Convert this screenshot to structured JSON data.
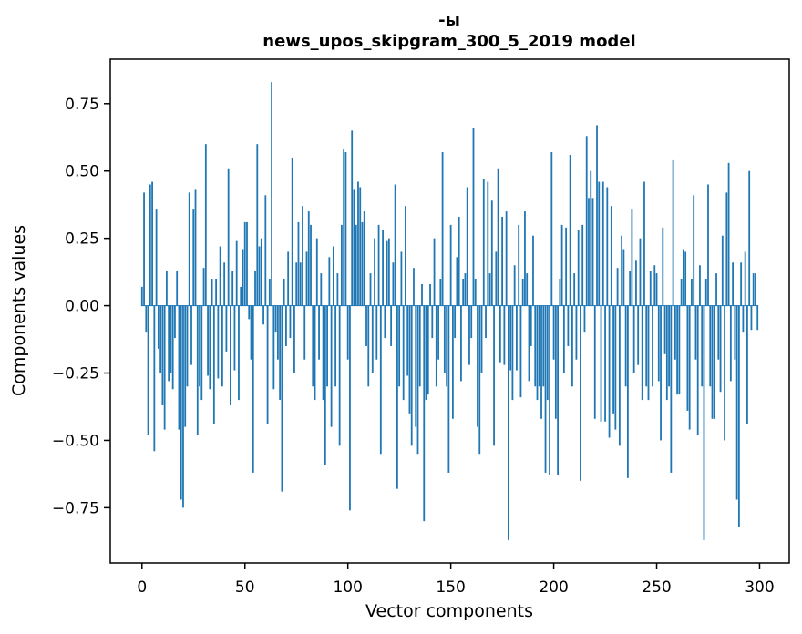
{
  "figure": {
    "title_line1": "-ы",
    "title_line2": "news_upos_skipgram_300_5_2019 model",
    "xlabel": "Vector components",
    "ylabel": "Components values"
  },
  "chart_data": {
    "type": "bar",
    "title": "-ы",
    "subtitle": "news_upos_skipgram_300_5_2019 model",
    "xlabel": "Vector components",
    "ylabel": "Components values",
    "bar_color": "#1f77b4",
    "axis_color": "#000000",
    "background_color": "#ffffff",
    "grid": false,
    "legend": null,
    "n_components": 300,
    "bar_width": 0.8,
    "xlim": [
      -15.4,
      314.4
    ],
    "ylim": [
      -0.955,
      0.915
    ],
    "xticks": [
      0,
      50,
      100,
      150,
      200,
      250,
      300
    ],
    "xtick_labels": [
      "0",
      "50",
      "100",
      "150",
      "200",
      "250",
      "300"
    ],
    "yticks": [
      0.75,
      0.5,
      0.25,
      0,
      -0.25,
      -0.5,
      -0.75
    ],
    "ytick_labels": [
      "0.75",
      "0.50",
      "0.25",
      "0.00",
      "−0.25",
      "−0.50",
      "−0.75"
    ],
    "values": [
      0.07,
      0.42,
      -0.1,
      -0.48,
      0.45,
      0.46,
      -0.54,
      0.36,
      -0.16,
      -0.25,
      -0.37,
      -0.46,
      0.13,
      -0.28,
      -0.25,
      -0.31,
      -0.12,
      0.13,
      -0.46,
      -0.72,
      -0.75,
      -0.45,
      -0.3,
      0.42,
      -0.22,
      0.36,
      0.43,
      -0.48,
      -0.3,
      -0.35,
      0.14,
      0.6,
      -0.26,
      -0.31,
      0.1,
      -0.44,
      0.1,
      -0.27,
      0.22,
      -0.3,
      0.16,
      -0.17,
      0.51,
      -0.37,
      0.13,
      -0.24,
      0.24,
      -0.35,
      0.07,
      0.21,
      0.31,
      0.31,
      -0.05,
      -0.2,
      -0.62,
      0.13,
      0.6,
      0.22,
      0.25,
      -0.07,
      0.41,
      -0.44,
      0.1,
      0.83,
      -0.31,
      -0.1,
      -0.2,
      -0.35,
      -0.69,
      0.1,
      -0.15,
      0.2,
      -0.12,
      0.55,
      -0.25,
      0.16,
      0.31,
      0.16,
      0.37,
      -0.2,
      0.2,
      0.35,
      0.3,
      -0.3,
      -0.35,
      0.25,
      -0.2,
      0.12,
      -0.35,
      -0.59,
      -0.3,
      0.18,
      -0.45,
      0.22,
      -0.3,
      0.12,
      -0.52,
      0.3,
      0.58,
      0.57,
      -0.2,
      -0.76,
      0.65,
      0.43,
      0.3,
      0.46,
      0.44,
      0.31,
      0.35,
      -0.15,
      -0.3,
      0.12,
      -0.25,
      0.25,
      -0.2,
      0.3,
      -0.55,
      0.28,
      -0.12,
      0.24,
      0.25,
      -0.15,
      0.16,
      0.45,
      -0.68,
      -0.3,
      0.2,
      -0.35,
      0.37,
      -0.26,
      -0.4,
      -0.52,
      0.14,
      -0.45,
      -0.55,
      -0.3,
      0.08,
      -0.8,
      -0.35,
      -0.33,
      0.08,
      -0.12,
      0.25,
      -0.3,
      -0.2,
      0.1,
      0.57,
      -0.25,
      -0.3,
      -0.62,
      0.3,
      -0.42,
      -0.12,
      0.18,
      0.33,
      -0.28,
      0.1,
      0.12,
      0.44,
      -0.22,
      -0.12,
      0.66,
      0.1,
      -0.45,
      -0.55,
      -0.25,
      0.47,
      -0.12,
      0.46,
      0.12,
      0.39,
      -0.52,
      0.2,
      0.51,
      -0.21,
      0.33,
      -0.22,
      0.35,
      -0.87,
      -0.24,
      -0.35,
      0.15,
      -0.24,
      0.3,
      -0.34,
      0.1,
      0.35,
      0.12,
      -0.28,
      -0.15,
      0.26,
      -0.3,
      -0.35,
      -0.3,
      -0.42,
      -0.3,
      -0.62,
      -0.35,
      -0.63,
      0.57,
      -0.2,
      -0.42,
      -0.63,
      0.1,
      0.3,
      -0.25,
      0.29,
      -0.15,
      0.56,
      -0.3,
      0.12,
      -0.2,
      0.28,
      -0.65,
      0.3,
      -0.1,
      0.63,
      0.4,
      0.5,
      0.4,
      -0.42,
      0.67,
      0.46,
      -0.43,
      0.46,
      -0.43,
      0.44,
      -0.49,
      0.37,
      -0.4,
      -0.46,
      0.14,
      -0.52,
      0.26,
      0.21,
      -0.3,
      -0.64,
      0.13,
      0.36,
      -0.25,
      0.17,
      -0.22,
      0.25,
      -0.35,
      0.46,
      -0.3,
      -0.35,
      0.13,
      -0.3,
      0.15,
      0.12,
      -0.28,
      -0.5,
      0.29,
      -0.18,
      -0.35,
      -0.3,
      -0.62,
      0.54,
      -0.2,
      -0.33,
      -0.33,
      0.1,
      0.21,
      0.2,
      -0.39,
      -0.46,
      0.1,
      0.41,
      -0.2,
      -0.48,
      0.15,
      -0.3,
      -0.87,
      0.1,
      0.45,
      -0.3,
      -0.42,
      -0.42,
      0.12,
      -0.2,
      -0.32,
      0.26,
      -0.5,
      0.42,
      0.53,
      -0.28,
      0.16,
      -0.2,
      -0.72,
      -0.82,
      0.16,
      -0.1,
      0.2,
      -0.44,
      0.5,
      -0.09,
      0.12,
      0.12,
      -0.09
    ]
  }
}
